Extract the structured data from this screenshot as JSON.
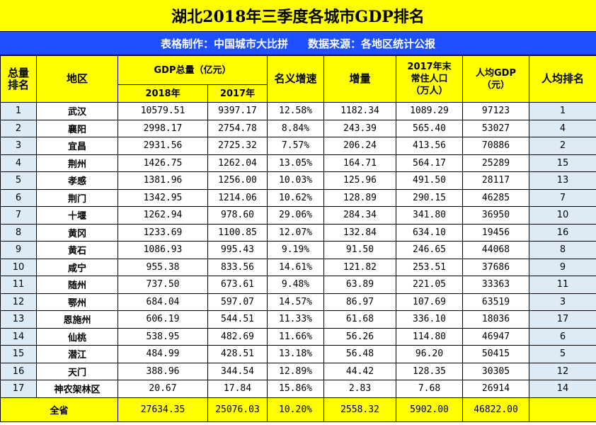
{
  "title": "湖北2018年三季度各城市GDP排名",
  "subtitle": {
    "maker": "表格制作：中国城市大比拼",
    "source": "数据来源：各地区统计公报"
  },
  "headers": {
    "rank": "总量\n排名",
    "region": "地区",
    "gdp_total": "GDP总量（亿元）",
    "y2018": "2018年",
    "y2017": "2017年",
    "nominal_growth": "名义增速",
    "increase": "增量",
    "population": "2017年末\n常住人口\n（万人）",
    "per_capita": "人均GDP\n（元）",
    "per_capita_rank": "人均排名"
  },
  "rows": [
    {
      "rank": "1",
      "city": "武汉",
      "g2018": "10579.51",
      "g2017": "9397.17",
      "growth": "12.58%",
      "inc": "1182.34",
      "pop": "1089.29",
      "pc": "97123",
      "pcr": "1"
    },
    {
      "rank": "2",
      "city": "襄阳",
      "g2018": "2998.17",
      "g2017": "2754.78",
      "growth": "8.84%",
      "inc": "243.39",
      "pop": "565.40",
      "pc": "53027",
      "pcr": "4"
    },
    {
      "rank": "3",
      "city": "宜昌",
      "g2018": "2931.56",
      "g2017": "2725.32",
      "growth": "7.57%",
      "inc": "206.24",
      "pop": "413.56",
      "pc": "70886",
      "pcr": "2"
    },
    {
      "rank": "4",
      "city": "荆州",
      "g2018": "1426.75",
      "g2017": "1262.04",
      "growth": "13.05%",
      "inc": "164.71",
      "pop": "564.17",
      "pc": "25289",
      "pcr": "15"
    },
    {
      "rank": "5",
      "city": "孝感",
      "g2018": "1381.96",
      "g2017": "1256.00",
      "growth": "10.03%",
      "inc": "125.96",
      "pop": "491.50",
      "pc": "28117",
      "pcr": "13"
    },
    {
      "rank": "6",
      "city": "荆门",
      "g2018": "1342.95",
      "g2017": "1214.06",
      "growth": "10.62%",
      "inc": "128.89",
      "pop": "290.15",
      "pc": "46285",
      "pcr": "7"
    },
    {
      "rank": "7",
      "city": "十堰",
      "g2018": "1262.94",
      "g2017": "978.60",
      "growth": "29.06%",
      "inc": "284.34",
      "pop": "341.80",
      "pc": "36950",
      "pcr": "10"
    },
    {
      "rank": "8",
      "city": "黄冈",
      "g2018": "1233.69",
      "g2017": "1100.85",
      "growth": "12.07%",
      "inc": "132.84",
      "pop": "634.10",
      "pc": "19456",
      "pcr": "16"
    },
    {
      "rank": "9",
      "city": "黄石",
      "g2018": "1086.93",
      "g2017": "995.43",
      "growth": "9.19%",
      "inc": "91.50",
      "pop": "246.65",
      "pc": "44068",
      "pcr": "8"
    },
    {
      "rank": "10",
      "city": "咸宁",
      "g2018": "955.38",
      "g2017": "833.56",
      "growth": "14.61%",
      "inc": "121.82",
      "pop": "253.51",
      "pc": "37686",
      "pcr": "9"
    },
    {
      "rank": "11",
      "city": "随州",
      "g2018": "737.50",
      "g2017": "673.61",
      "growth": "9.48%",
      "inc": "63.89",
      "pop": "221.05",
      "pc": "33363",
      "pcr": "11"
    },
    {
      "rank": "12",
      "city": "鄂州",
      "g2018": "684.04",
      "g2017": "597.07",
      "growth": "14.57%",
      "inc": "86.97",
      "pop": "107.69",
      "pc": "63519",
      "pcr": "3"
    },
    {
      "rank": "13",
      "city": "恩施州",
      "g2018": "606.19",
      "g2017": "544.51",
      "growth": "11.33%",
      "inc": "61.68",
      "pop": "336.10",
      "pc": "18036",
      "pcr": "17"
    },
    {
      "rank": "14",
      "city": "仙桃",
      "g2018": "538.95",
      "g2017": "482.69",
      "growth": "11.66%",
      "inc": "56.26",
      "pop": "114.80",
      "pc": "46947",
      "pcr": "6"
    },
    {
      "rank": "15",
      "city": "潜江",
      "g2018": "484.99",
      "g2017": "428.51",
      "growth": "13.18%",
      "inc": "56.48",
      "pop": "96.20",
      "pc": "50415",
      "pcr": "5"
    },
    {
      "rank": "16",
      "city": "天门",
      "g2018": "388.96",
      "g2017": "344.54",
      "growth": "12.89%",
      "inc": "44.42",
      "pop": "128.35",
      "pc": "30305",
      "pcr": "12"
    },
    {
      "rank": "17",
      "city": "神农架林区",
      "g2018": "20.67",
      "g2017": "17.84",
      "growth": "15.86%",
      "inc": "2.83",
      "pop": "7.68",
      "pc": "26914",
      "pcr": "14"
    }
  ],
  "total": {
    "label": "全省",
    "g2018": "27634.35",
    "g2017": "25076.03",
    "growth": "10.20%",
    "inc": "2558.32",
    "pop": "5902.00",
    "pc": "46822.00",
    "pcr": ""
  },
  "colors": {
    "title_bg": "#ffff00",
    "subtitle_bg": "#1e50ff",
    "subtitle_text": "#ffffff",
    "rank_cell_bg": "#ddebf7",
    "total_bg": "#ffff00"
  }
}
